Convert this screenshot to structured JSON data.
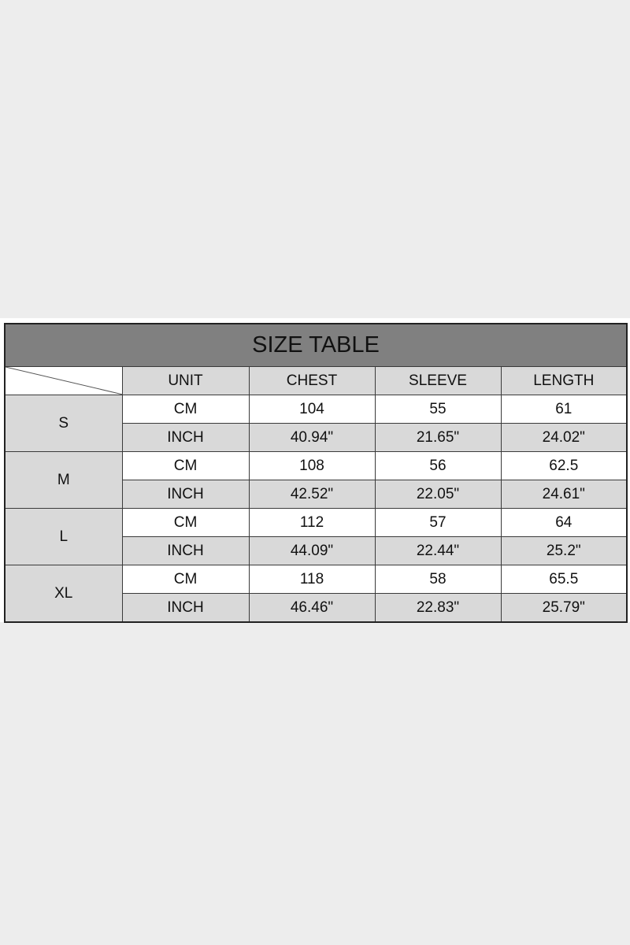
{
  "title": "SIZE TABLE",
  "headers": [
    "UNIT",
    "CHEST",
    "SLEEVE",
    "LENGTH"
  ],
  "sizes": [
    {
      "size": "S",
      "rows": [
        [
          "CM",
          "104",
          "55",
          "61"
        ],
        [
          "INCH",
          "40.94\"",
          "21.65\"",
          "24.02\""
        ]
      ]
    },
    {
      "size": "M",
      "rows": [
        [
          "CM",
          "108",
          "56",
          "62.5"
        ],
        [
          "INCH",
          "42.52\"",
          "22.05\"",
          "24.61\""
        ]
      ]
    },
    {
      "size": "L",
      "rows": [
        [
          "CM",
          "112",
          "57",
          "64"
        ],
        [
          "INCH",
          "44.09\"",
          "22.44\"",
          "25.2\""
        ]
      ]
    },
    {
      "size": "XL",
      "rows": [
        [
          "CM",
          "118",
          "58",
          "65.5"
        ],
        [
          "INCH",
          "46.46\"",
          "22.83\"",
          "25.79\""
        ]
      ]
    }
  ],
  "colors": {
    "title_bg": "#808080",
    "cell_gray": "#d9d9d9",
    "cell_white": "#ffffff"
  }
}
